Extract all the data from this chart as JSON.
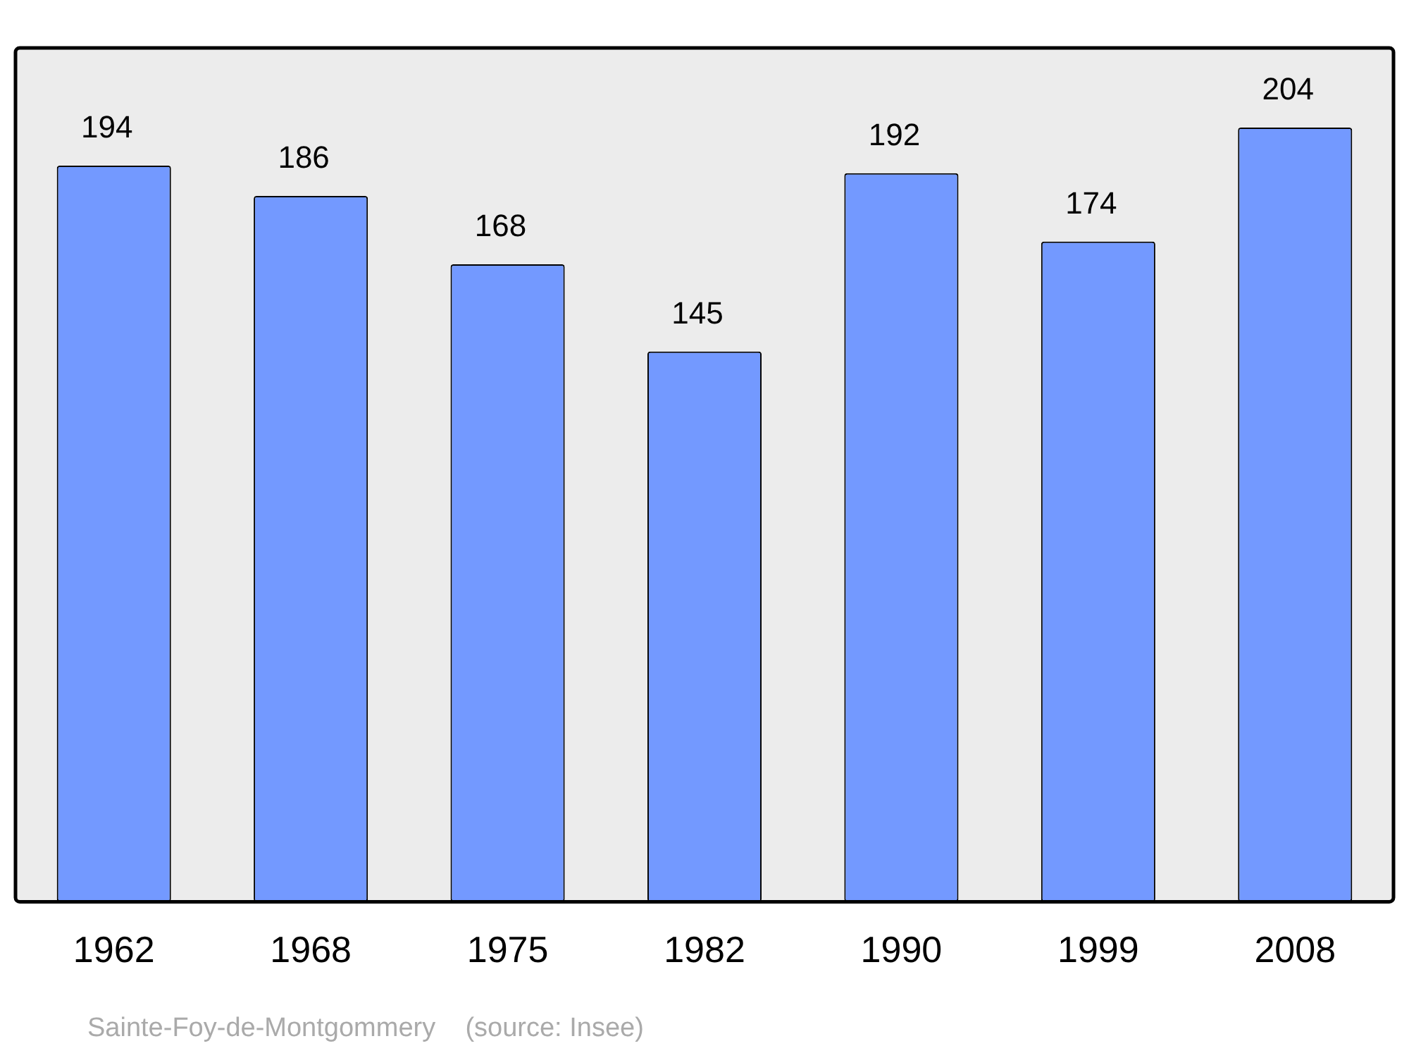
{
  "chart_data": {
    "type": "bar",
    "categories": [
      "1962",
      "1968",
      "1975",
      "1982",
      "1990",
      "1999",
      "2008"
    ],
    "values": [
      194,
      186,
      168,
      145,
      192,
      174,
      204
    ],
    "color": "#7399ff",
    "ylim": [
      0,
      225
    ],
    "tick_labels": "x",
    "grid": false,
    "legend": false,
    "data_labels": true,
    "annotations": [
      "Sainte-Foy-de-Montgommery    (source: Insee)"
    ]
  }
}
